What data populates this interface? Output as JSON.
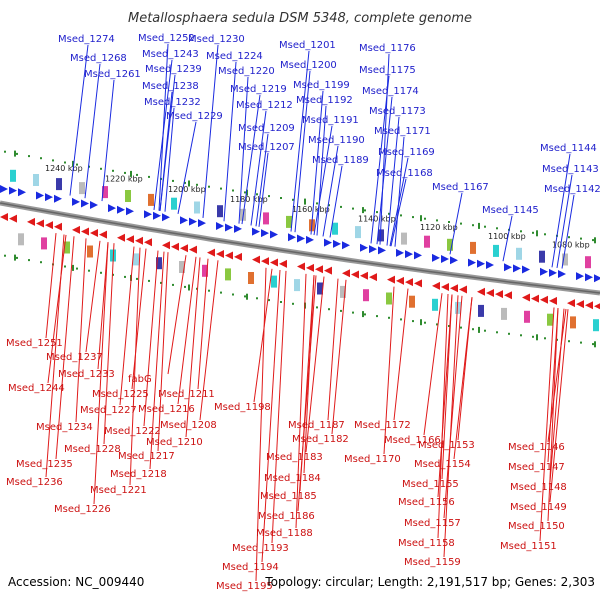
{
  "header": {
    "title": "Metallosphaera sedula DSM 5348, complete genome"
  },
  "footer": {
    "accession": "Accession: NC_009440",
    "summary": "Topology: circular; Length: 2,191,517 bp; Genes: 2,303"
  },
  "colors": {
    "forward": "#1a2ae0",
    "reverse": "#e01a1a",
    "backbone": "#888888",
    "ticks": "#2e8b2e"
  },
  "ticks": [
    "1240 kbp",
    "1220 kbp",
    "1200 kbp",
    "1180 kbp",
    "1160 kbp",
    "1140 kbp",
    "1120 kbp",
    "1100 kbp",
    "1080 kbp"
  ],
  "forward_labels": [
    "Msed_1274",
    "Msed_1268",
    "Msed_1261",
    "Msed_1252",
    "Msed_1243",
    "Msed_1239",
    "Msed_1238",
    "Msed_1232",
    "Msed_1229",
    "Msed_1230",
    "Msed_1224",
    "Msed_1220",
    "Msed_1219",
    "Msed_1212",
    "Msed_1209",
    "Msed_1207",
    "Msed_1201",
    "Msed_1200",
    "Msed_1199",
    "Msed_1192",
    "Msed_1191",
    "Msed_1190",
    "Msed_1189",
    "Msed_1176",
    "Msed_1175",
    "Msed_1174",
    "Msed_1173",
    "Msed_1171",
    "Msed_1169",
    "Msed_1168",
    "Msed_1167",
    "Msed_1145",
    "Msed_1144",
    "Msed_1143",
    "Msed_1142"
  ],
  "reverse_labels": [
    "Msed_1251",
    "Msed_1237",
    "Msed_1244",
    "Msed_1233",
    "Msed_1225",
    "fabG",
    "Msed_1211",
    "Msed_1227",
    "Msed_1216",
    "Msed_1234",
    "Msed_1222",
    "Msed_1208",
    "Msed_1228",
    "Msed_1210",
    "Msed_1235",
    "Msed_1217",
    "Msed_1218",
    "Msed_1236",
    "Msed_1221",
    "Msed_1226",
    "Msed_1198",
    "Msed_1187",
    "Msed_1182",
    "Msed_1183",
    "Msed_1184",
    "Msed_1185",
    "Msed_1186",
    "Msed_1188",
    "Msed_1193",
    "Msed_1194",
    "Msed_1195",
    "Msed_1172",
    "Msed_1166",
    "Msed_1170",
    "Msed_1153",
    "Msed_1154",
    "Msed_1155",
    "Msed_1156",
    "Msed_1157",
    "Msed_1158",
    "Msed_1159",
    "Msed_1146",
    "Msed_1147",
    "Msed_1148",
    "Msed_1149",
    "Msed_1150",
    "Msed_1151"
  ]
}
